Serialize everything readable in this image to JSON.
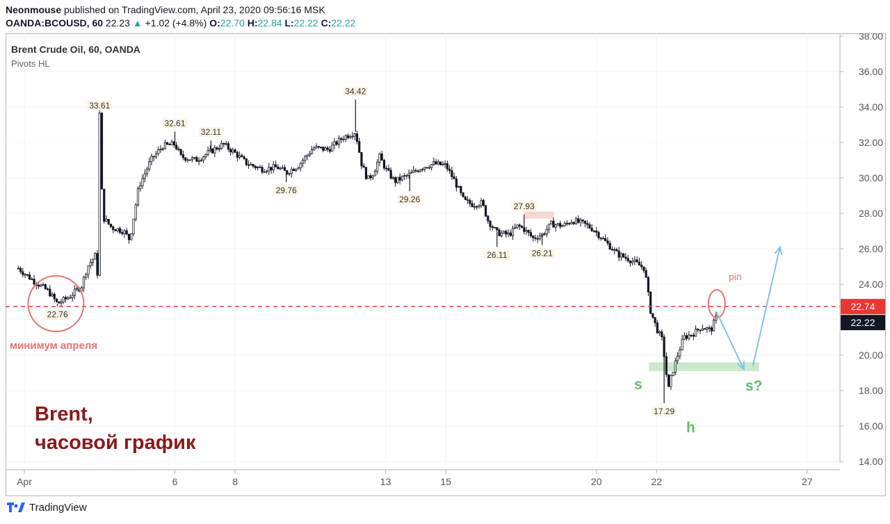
{
  "header": {
    "author": "Neonmouse",
    "published_text": "published on TradingView.com, April 23, 2020 09:56:16 MSK",
    "symbol": "OANDA:BCOUSD, 60",
    "last": "22.23",
    "change_arrow": "▲",
    "change": "+1.02 (+4.8%)",
    "open_key": "O:",
    "open": "22.70",
    "high_key": "H:",
    "high": "22.84",
    "low_key": "L:",
    "low": "22.22",
    "close_key": "C:",
    "close": "22.22"
  },
  "legend": {
    "title": "Brent Crude Oil, 60, OANDA",
    "indicator": "Pivots HL"
  },
  "annotations": {
    "april_min": "минимум апреля",
    "caption_line1": "Brent,",
    "caption_line2": "часовой график",
    "pin": "pin",
    "s": "s",
    "s_question": "s?",
    "h": "h"
  },
  "price_tags": {
    "level": "22.74",
    "last": "22.22"
  },
  "footer": {
    "brand": "TradingView"
  },
  "colors": {
    "up": "#26a69a",
    "candle": "#131722",
    "level_line": "#e53935",
    "annotation_red": "#e57373",
    "caption_dark_red": "#8b1a1a",
    "green_text": "#66bb6a",
    "arrow_blue": "#81c3e8"
  },
  "chart_data": {
    "type": "candlestick",
    "symbol": "OANDA:BCOUSD",
    "timeframe": "60",
    "y_axis": {
      "range": [
        14,
        38
      ],
      "ticks": [
        "14.00",
        "16.00",
        "18.00",
        "20.00",
        "22.00",
        "24.00",
        "26.00",
        "28.00",
        "30.00",
        "32.00",
        "34.00",
        "36.00",
        "38.00"
      ]
    },
    "x_axis": {
      "ticks": [
        {
          "label": "Apr",
          "day": 1
        },
        {
          "label": "6",
          "day": 6
        },
        {
          "label": "8",
          "day": 8
        },
        {
          "label": "13",
          "day": 13
        },
        {
          "label": "15",
          "day": 15
        },
        {
          "label": "20",
          "day": 20
        },
        {
          "label": "22",
          "day": 22
        },
        {
          "label": "27",
          "day": 27
        }
      ]
    },
    "pivots": [
      {
        "label": "22.76",
        "day": 2.1,
        "price": 22.76,
        "type": "low"
      },
      {
        "label": "33.61",
        "day": 3.5,
        "price": 33.61,
        "type": "high"
      },
      {
        "label": "32.61",
        "day": 6.0,
        "price": 32.61,
        "type": "high"
      },
      {
        "label": "32.11",
        "day": 7.2,
        "price": 32.11,
        "type": "high"
      },
      {
        "label": "29.76",
        "day": 9.7,
        "price": 29.76,
        "type": "low"
      },
      {
        "label": "34.42",
        "day": 12.0,
        "price": 34.42,
        "type": "high"
      },
      {
        "label": "29.26",
        "day": 13.8,
        "price": 29.26,
        "type": "low"
      },
      {
        "label": "26.11",
        "day": 16.7,
        "price": 26.11,
        "type": "low"
      },
      {
        "label": "27.93",
        "day": 17.6,
        "price": 27.93,
        "type": "high"
      },
      {
        "label": "26.21",
        "day": 18.2,
        "price": 26.21,
        "type": "low"
      },
      {
        "label": "17.29",
        "day": 22.25,
        "price": 17.29,
        "type": "low"
      }
    ],
    "path": [
      [
        0.8,
        24.9
      ],
      [
        1.3,
        24.2
      ],
      [
        1.8,
        23.6
      ],
      [
        2.1,
        22.9
      ],
      [
        2.5,
        23.3
      ],
      [
        2.9,
        23.9
      ],
      [
        3.1,
        25.0
      ],
      [
        3.35,
        25.6
      ],
      [
        3.45,
        24.3
      ],
      [
        3.5,
        33.6
      ],
      [
        3.6,
        27.8
      ],
      [
        3.9,
        27.2
      ],
      [
        4.3,
        27.0
      ],
      [
        4.5,
        26.5
      ],
      [
        4.8,
        29.5
      ],
      [
        5.2,
        31.0
      ],
      [
        5.6,
        31.8
      ],
      [
        6.0,
        31.9
      ],
      [
        6.2,
        31.2
      ],
      [
        6.7,
        31.0
      ],
      [
        7.2,
        31.5
      ],
      [
        7.6,
        31.9
      ],
      [
        8.0,
        31.4
      ],
      [
        8.4,
        30.8
      ],
      [
        8.9,
        30.5
      ],
      [
        9.4,
        30.6
      ],
      [
        9.7,
        30.3
      ],
      [
        10.1,
        30.7
      ],
      [
        10.6,
        31.7
      ],
      [
        11.1,
        31.6
      ],
      [
        11.6,
        32.3
      ],
      [
        12.0,
        32.6
      ],
      [
        12.2,
        30.8
      ],
      [
        12.4,
        29.9
      ],
      [
        12.6,
        30.3
      ],
      [
        12.8,
        31.2
      ],
      [
        13.0,
        30.5
      ],
      [
        13.3,
        29.8
      ],
      [
        13.8,
        30.2
      ],
      [
        14.2,
        30.6
      ],
      [
        14.6,
        30.8
      ],
      [
        15.0,
        30.7
      ],
      [
        15.3,
        29.8
      ],
      [
        15.6,
        28.7
      ],
      [
        15.9,
        28.5
      ],
      [
        16.2,
        28.6
      ],
      [
        16.4,
        27.6
      ],
      [
        16.7,
        26.9
      ],
      [
        17.1,
        26.8
      ],
      [
        17.4,
        27.3
      ],
      [
        17.6,
        27.1
      ],
      [
        17.9,
        26.6
      ],
      [
        18.2,
        26.8
      ],
      [
        18.5,
        27.4
      ],
      [
        18.9,
        27.3
      ],
      [
        19.2,
        27.6
      ],
      [
        19.6,
        27.4
      ],
      [
        19.9,
        27.1
      ],
      [
        20.3,
        26.4
      ],
      [
        20.7,
        25.7
      ],
      [
        21.1,
        25.4
      ],
      [
        21.6,
        24.9
      ],
      [
        21.8,
        22.5
      ],
      [
        22.0,
        21.5
      ],
      [
        22.2,
        20.8
      ],
      [
        22.3,
        19.2
      ],
      [
        22.4,
        18.1
      ],
      [
        22.5,
        18.9
      ],
      [
        22.7,
        20.0
      ],
      [
        22.9,
        21.0
      ],
      [
        23.2,
        21.2
      ],
      [
        23.5,
        21.6
      ],
      [
        23.8,
        21.4
      ],
      [
        24.0,
        22.2
      ]
    ],
    "level_line": {
      "price": 22.74
    },
    "support_zone": {
      "day_from": 21.75,
      "day_to": 25.4,
      "price_from": 19.1,
      "price_to": 19.6
    },
    "resistance_zone": {
      "day_from": 17.6,
      "day_to": 18.6,
      "price_from": 27.7,
      "price_to": 28.1
    },
    "arrow_down": {
      "from": [
        24.0,
        22.4
      ],
      "to": [
        24.9,
        19.2
      ]
    },
    "arrow_up": {
      "from": [
        25.2,
        19.4
      ],
      "to": [
        26.1,
        26.1
      ]
    }
  }
}
